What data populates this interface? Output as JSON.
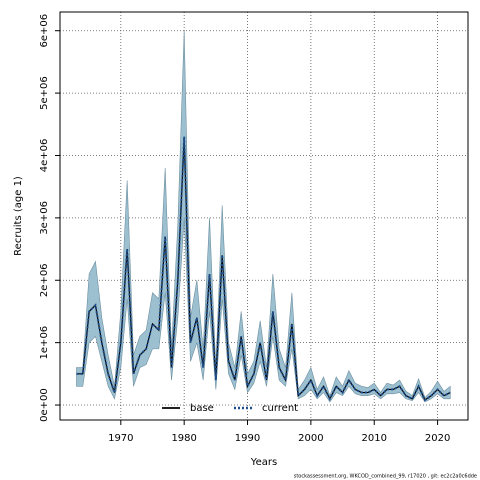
{
  "chart_data": {
    "type": "line",
    "xlabel": "Years",
    "ylabel": "Recruits (age 1)",
    "footer": "stockassessment.org, WKCOD_combined_99, r17020 , git: ec2c2a0c6dde",
    "x": [
      1963,
      1964,
      1965,
      1966,
      1967,
      1968,
      1969,
      1970,
      1971,
      1972,
      1973,
      1974,
      1975,
      1976,
      1977,
      1978,
      1979,
      1980,
      1981,
      1982,
      1983,
      1984,
      1985,
      1986,
      1987,
      1988,
      1989,
      1990,
      1991,
      1992,
      1993,
      1994,
      1995,
      1996,
      1997,
      1998,
      1999,
      2000,
      2001,
      2002,
      2003,
      2004,
      2005,
      2006,
      2007,
      2008,
      2009,
      2010,
      2011,
      2012,
      2013,
      2014,
      2015,
      2016,
      2017,
      2018,
      2019,
      2020,
      2021,
      2022
    ],
    "xlim": [
      1960.4,
      2024.8
    ],
    "xticks": [
      1970,
      1980,
      1990,
      2000,
      2010,
      2020
    ],
    "ylim": [
      -240000,
      6300000
    ],
    "yticks": [
      {
        "value": 0,
        "label": "0e+00"
      },
      {
        "value": 1000000,
        "label": "1e+06"
      },
      {
        "value": 2000000,
        "label": "2e+06"
      },
      {
        "value": 3000000,
        "label": "3e+06"
      },
      {
        "value": 4000000,
        "label": "4e+06"
      },
      {
        "value": 5000000,
        "label": "5e+06"
      },
      {
        "value": 6000000,
        "label": "6e+06"
      }
    ],
    "grid": true,
    "legend": "bottom",
    "band": {
      "color": "#9cc0d0",
      "lower": [
        300000,
        300000,
        1000000,
        1100000,
        700000,
        300000,
        100000,
        600000,
        1700000,
        300000,
        600000,
        650000,
        900000,
        900000,
        1800000,
        400000,
        1400000,
        3000000,
        700000,
        1000000,
        400000,
        1500000,
        250000,
        1700000,
        500000,
        250000,
        800000,
        200000,
        350000,
        700000,
        300000,
        1100000,
        400000,
        300000,
        900000,
        100000,
        150000,
        250000,
        100000,
        200000,
        50000,
        200000,
        150000,
        300000,
        180000,
        150000,
        150000,
        180000,
        100000,
        180000,
        180000,
        200000,
        100000,
        70000,
        200000,
        50000,
        100000,
        180000,
        100000,
        100000
      ],
      "upper": [
        600000,
        600000,
        2100000,
        2300000,
        1400000,
        800000,
        300000,
        1500000,
        3600000,
        800000,
        1100000,
        1200000,
        1800000,
        1700000,
        3800000,
        900000,
        2900000,
        6000000,
        1400000,
        2000000,
        900000,
        3000000,
        600000,
        3200000,
        1000000,
        600000,
        1500000,
        500000,
        700000,
        1350000,
        600000,
        2100000,
        900000,
        600000,
        1800000,
        250000,
        400000,
        600000,
        250000,
        450000,
        150000,
        450000,
        300000,
        550000,
        350000,
        300000,
        280000,
        350000,
        200000,
        350000,
        320000,
        400000,
        220000,
        150000,
        420000,
        120000,
        220000,
        380000,
        220000,
        300000
      ]
    },
    "series": [
      {
        "name": "base",
        "color": "#000000",
        "values": [
          500000,
          500000,
          1500000,
          1600000,
          1000000,
          500000,
          200000,
          1000000,
          2500000,
          500000,
          800000,
          900000,
          1300000,
          1200000,
          2700000,
          600000,
          2000000,
          4300000,
          1000000,
          1400000,
          600000,
          2100000,
          400000,
          2400000,
          700000,
          400000,
          1100000,
          300000,
          500000,
          1000000,
          400000,
          1500000,
          600000,
          400000,
          1300000,
          150000,
          250000,
          400000,
          150000,
          300000,
          100000,
          300000,
          200000,
          400000,
          250000,
          200000,
          200000,
          250000,
          150000,
          250000,
          250000,
          300000,
          150000,
          100000,
          300000,
          80000,
          150000,
          250000,
          150000,
          200000
        ]
      },
      {
        "name": "current",
        "color": "#1f4e8c",
        "values": [
          500000,
          500000,
          1500000,
          1600000,
          1000000,
          500000,
          200000,
          1000000,
          2500000,
          500000,
          800000,
          900000,
          1300000,
          1200000,
          2700000,
          600000,
          2000000,
          4300000,
          1000000,
          1400000,
          600000,
          2100000,
          400000,
          2400000,
          700000,
          400000,
          1100000,
          300000,
          500000,
          1000000,
          400000,
          1500000,
          600000,
          400000,
          1300000,
          150000,
          250000,
          400000,
          150000,
          300000,
          100000,
          300000,
          200000,
          400000,
          250000,
          200000,
          200000,
          250000,
          150000,
          250000,
          250000,
          300000,
          150000,
          100000,
          300000,
          80000,
          150000,
          250000,
          150000,
          200000
        ]
      }
    ]
  }
}
